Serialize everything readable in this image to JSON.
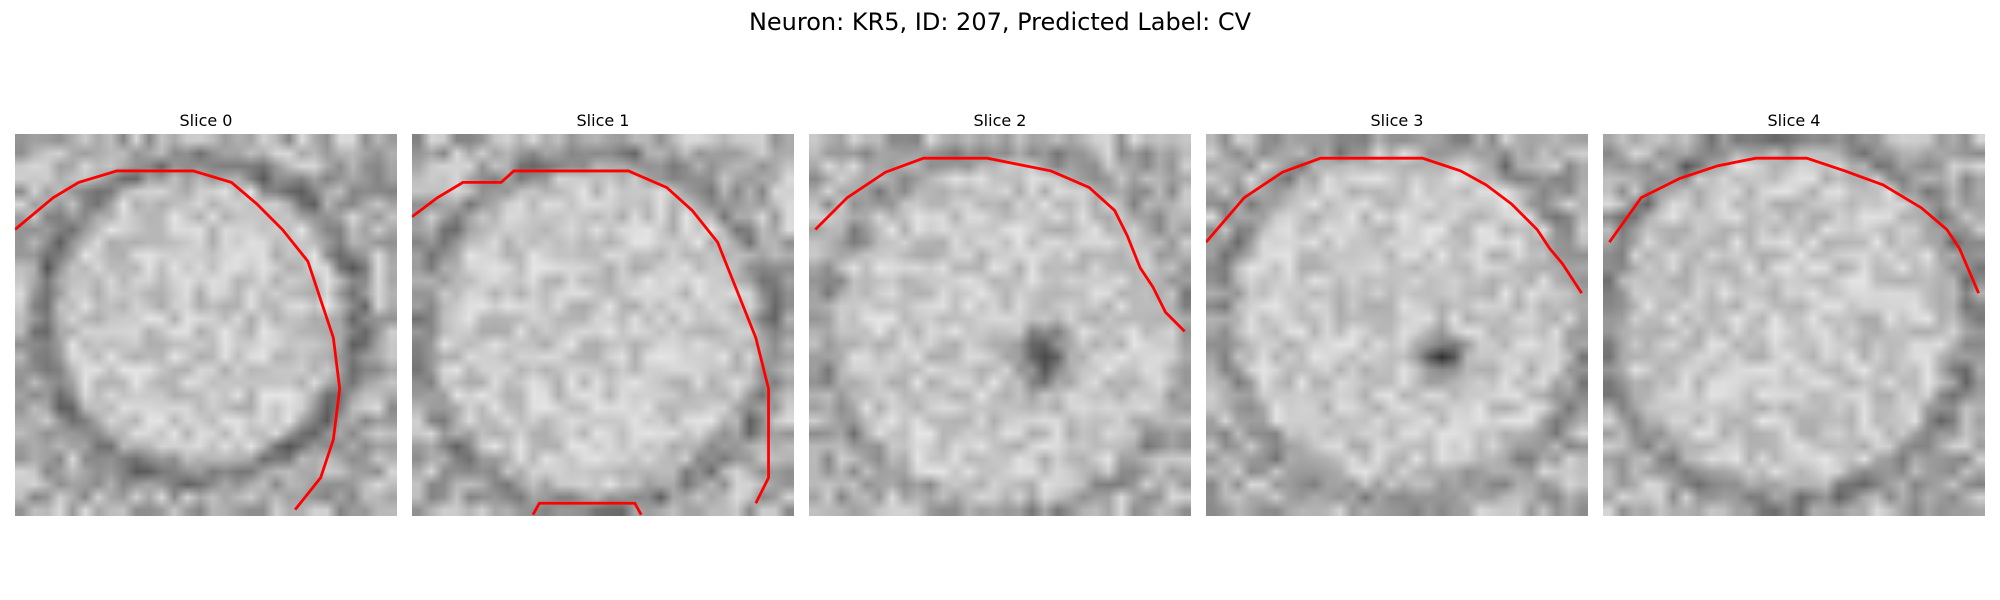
{
  "figure": {
    "title": "Neuron: KR5, ID: 207, Predicted Label: CV",
    "contour_color": "#ff0000",
    "colormap": "grayscale",
    "axes_visible": false
  },
  "panels": [
    {
      "title": "Slice 0",
      "image": "grayscale-em-patch"
    },
    {
      "title": "Slice 1",
      "image": "grayscale-em-patch"
    },
    {
      "title": "Slice 2",
      "image": "grayscale-em-patch"
    },
    {
      "title": "Slice 3",
      "image": "grayscale-em-patch"
    },
    {
      "title": "Slice 4",
      "image": "grayscale-em-patch"
    }
  ]
}
